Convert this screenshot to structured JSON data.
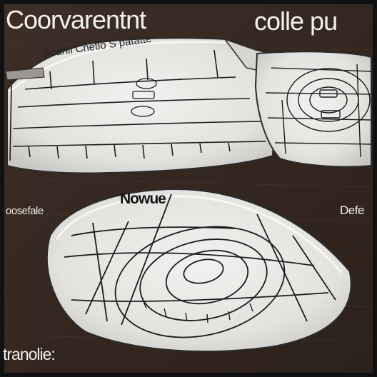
{
  "texts": {
    "title_main": "Coorvarentnt",
    "title_right": "colle pu",
    "top_caption": "Acanil Cnetlo S patatte",
    "bottom_title": "Nowue",
    "left_label": "oosefale",
    "right_label": "Defe",
    "bottom_label": "tranolie:"
  },
  "colors": {
    "wood": "#3a2c25",
    "plate": "#e9e8e6",
    "ink": "#1c1c1c",
    "text_light": "#f2f1ec"
  }
}
